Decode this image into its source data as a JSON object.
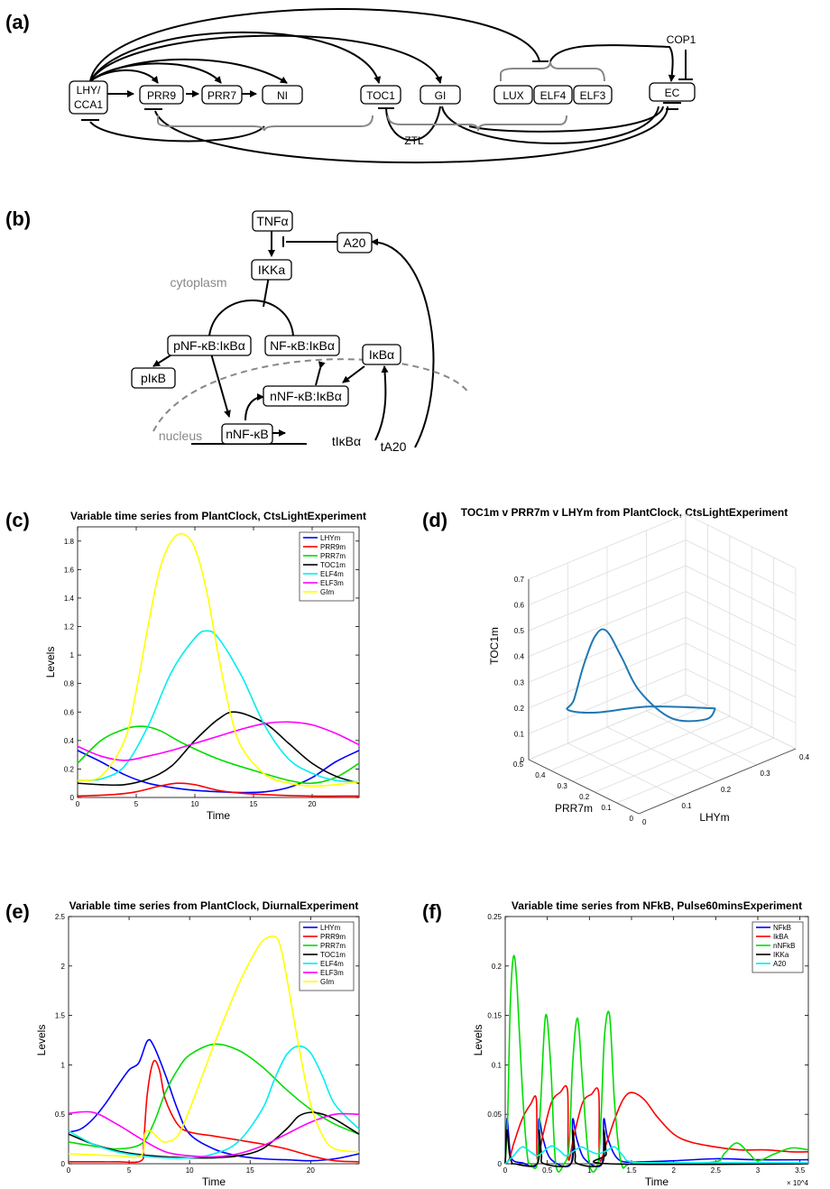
{
  "panels": {
    "a": {
      "label": "(a)",
      "nodes": {
        "lhy1": "LHY/",
        "lhy2": "CCA1",
        "prr9": "PRR9",
        "prr7": "PRR7",
        "ni": "NI",
        "toc1": "TOC1",
        "gi": "GI",
        "lux": "LUX",
        "elf4": "ELF4",
        "elf3": "ELF3",
        "ec": "EC",
        "cop1": "COP1",
        "ztl": "ZTL"
      }
    },
    "b": {
      "label": "(b)",
      "nodes": {
        "tnfa": "TNFα",
        "a20": "A20",
        "ikka": "IKKa",
        "pnfkb": "pNF-κB:IκBα",
        "nfkb": "NF-κB:IκBα",
        "pikb": "pIκB",
        "ikba": "IκBα",
        "nnfkb_ikba": "nNF-κB:IκBα",
        "nnfkb": "nNF-κB",
        "tikba": "tIκBα",
        "ta20": "tA20"
      },
      "compartments": {
        "cytoplasm": "cytoplasm",
        "nucleus": "nucleus"
      }
    },
    "c": {
      "label": "(c)"
    },
    "d": {
      "label": "(d)"
    },
    "e": {
      "label": "(e)"
    },
    "f": {
      "label": "(f)"
    }
  },
  "chart_data": [
    {
      "panel": "c",
      "type": "line",
      "title": "Variable time series from PlantClock, CtsLightExperiment",
      "xlabel": "Time",
      "ylabel": "Levels",
      "xlim": [
        0,
        24
      ],
      "ylim": [
        0,
        1.9
      ],
      "xticks": [
        0,
        5,
        10,
        15,
        20
      ],
      "yticks": [
        0,
        0.2,
        0.4,
        0.6,
        0.8,
        1,
        1.2,
        1.4,
        1.6,
        1.8
      ],
      "legend_position": "top-right",
      "grid": false,
      "series": [
        {
          "name": "LHYm",
          "color": "#0000ff",
          "x": [
            0,
            2,
            4,
            6,
            8,
            10,
            12,
            14,
            16,
            18,
            20,
            22,
            24
          ],
          "y": [
            0.33,
            0.25,
            0.16,
            0.1,
            0.07,
            0.05,
            0.04,
            0.035,
            0.04,
            0.07,
            0.14,
            0.25,
            0.33
          ]
        },
        {
          "name": "PRR9m",
          "color": "#ff0000",
          "x": [
            0,
            3,
            5,
            7,
            8.5,
            10,
            12,
            14,
            16,
            20,
            24
          ],
          "y": [
            0.01,
            0.02,
            0.04,
            0.08,
            0.1,
            0.09,
            0.05,
            0.03,
            0.02,
            0.01,
            0.01
          ]
        },
        {
          "name": "PRR7m",
          "color": "#00dd00",
          "x": [
            0,
            2,
            4,
            5.5,
            7,
            9,
            12,
            15,
            18,
            20,
            22,
            24
          ],
          "y": [
            0.24,
            0.4,
            0.48,
            0.5,
            0.47,
            0.38,
            0.27,
            0.19,
            0.12,
            0.1,
            0.14,
            0.24
          ]
        },
        {
          "name": "TOC1m",
          "color": "#000000",
          "x": [
            0,
            2,
            4,
            6,
            8,
            10,
            12,
            13.5,
            16,
            18,
            20,
            22,
            24
          ],
          "y": [
            0.1,
            0.09,
            0.09,
            0.13,
            0.22,
            0.4,
            0.55,
            0.6,
            0.52,
            0.38,
            0.24,
            0.15,
            0.1
          ]
        },
        {
          "name": "ELF4m",
          "color": "#00eeee",
          "x": [
            0,
            2,
            4,
            6,
            8,
            10,
            11,
            12,
            14,
            16,
            18,
            20,
            22,
            24
          ],
          "y": [
            0.12,
            0.13,
            0.22,
            0.5,
            0.88,
            1.12,
            1.17,
            1.12,
            0.85,
            0.5,
            0.27,
            0.17,
            0.12,
            0.11
          ]
        },
        {
          "name": "ELF3m",
          "color": "#ff00ff",
          "x": [
            0,
            2,
            4,
            6,
            8,
            10,
            12,
            14,
            16,
            18,
            20,
            22,
            24
          ],
          "y": [
            0.36,
            0.29,
            0.26,
            0.29,
            0.33,
            0.38,
            0.43,
            0.48,
            0.52,
            0.53,
            0.51,
            0.45,
            0.37
          ]
        },
        {
          "name": "GIm",
          "color": "#ffff00",
          "x": [
            0,
            2,
            4,
            5,
            6,
            7,
            8,
            9,
            10,
            11,
            12,
            13,
            14,
            16,
            18,
            20,
            22,
            24
          ],
          "y": [
            0.12,
            0.15,
            0.4,
            0.75,
            1.2,
            1.6,
            1.8,
            1.85,
            1.75,
            1.45,
            1.0,
            0.6,
            0.35,
            0.16,
            0.1,
            0.08,
            0.09,
            0.11
          ]
        }
      ]
    },
    {
      "panel": "d",
      "type": "line3d",
      "title": "TOC1m v PRR7m v LHYm from PlantClock, CtsLightExperiment",
      "xlabel": "LHYm",
      "ylabel": "PRR7m",
      "zlabel": "TOC1m",
      "xlim": [
        0,
        0.4
      ],
      "ylim": [
        0,
        0.5
      ],
      "zlim": [
        0,
        0.7
      ],
      "xticks": [
        0,
        0.1,
        0.2,
        0.3,
        0.4
      ],
      "yticks": [
        0,
        0.1,
        0.2,
        0.3,
        0.4,
        0.5
      ],
      "zticks": [
        0,
        0.1,
        0.2,
        0.3,
        0.4,
        0.5,
        0.6,
        0.7
      ],
      "grid": true,
      "series": [
        {
          "name": "",
          "color": "#1f77b4",
          "x": [
            0.33,
            0.25,
            0.16,
            0.1,
            0.07,
            0.05,
            0.04,
            0.035,
            0.04,
            0.07,
            0.14,
            0.25,
            0.33
          ],
          "y": [
            0.24,
            0.4,
            0.48,
            0.5,
            0.42,
            0.34,
            0.27,
            0.21,
            0.15,
            0.12,
            0.1,
            0.14,
            0.24
          ],
          "z": [
            0.1,
            0.09,
            0.09,
            0.13,
            0.22,
            0.4,
            0.55,
            0.6,
            0.52,
            0.38,
            0.24,
            0.15,
            0.1
          ]
        }
      ]
    },
    {
      "panel": "e",
      "type": "line",
      "title": "Variable time series from PlantClock, DiurnalExperiment",
      "xlabel": "Time",
      "ylabel": "Levels",
      "xlim": [
        0,
        24
      ],
      "ylim": [
        0,
        2.5
      ],
      "xticks": [
        0,
        5,
        10,
        15,
        20
      ],
      "yticks": [
        0,
        0.5,
        1,
        1.5,
        2,
        2.5
      ],
      "legend_position": "top-right",
      "grid": false,
      "series": [
        {
          "name": "LHYm",
          "color": "#0000ff",
          "x": [
            0,
            1,
            2,
            3,
            4,
            5,
            5.8,
            6.5,
            7,
            8,
            9,
            10,
            12,
            14,
            16,
            18,
            20,
            22,
            24
          ],
          "y": [
            0.32,
            0.35,
            0.45,
            0.6,
            0.78,
            0.95,
            1.02,
            1.24,
            1.2,
            0.9,
            0.55,
            0.3,
            0.15,
            0.08,
            0.05,
            0.04,
            0.03,
            0.05,
            0.1
          ]
        },
        {
          "name": "PRR9m",
          "color": "#ff0000",
          "x": [
            0,
            2,
            4,
            6,
            6.2,
            6.5,
            7,
            7.5,
            8,
            9,
            10,
            12,
            14,
            16,
            18,
            20,
            22,
            24
          ],
          "y": [
            0.02,
            0.02,
            0.02,
            0.03,
            0.2,
            0.7,
            1.03,
            0.95,
            0.65,
            0.4,
            0.32,
            0.28,
            0.24,
            0.2,
            0.15,
            0.08,
            0.03,
            0.02
          ]
        },
        {
          "name": "PRR7m",
          "color": "#00dd00",
          "x": [
            0,
            2,
            4,
            6,
            7,
            8,
            9,
            10,
            12,
            14,
            16,
            18,
            20,
            22,
            24
          ],
          "y": [
            0.22,
            0.18,
            0.15,
            0.2,
            0.4,
            0.72,
            0.95,
            1.1,
            1.21,
            1.15,
            0.98,
            0.75,
            0.55,
            0.4,
            0.3
          ]
        },
        {
          "name": "TOC1m",
          "color": "#000000",
          "x": [
            0,
            2,
            4,
            6,
            8,
            10,
            12,
            14,
            16,
            18,
            19,
            20,
            21,
            22,
            24
          ],
          "y": [
            0.3,
            0.2,
            0.13,
            0.09,
            0.07,
            0.06,
            0.06,
            0.08,
            0.15,
            0.35,
            0.48,
            0.52,
            0.5,
            0.45,
            0.3
          ]
        },
        {
          "name": "ELF4m",
          "color": "#00eeee",
          "x": [
            0,
            2,
            4,
            6,
            8,
            10,
            12,
            14,
            16,
            17,
            18,
            19,
            20,
            21,
            22,
            24
          ],
          "y": [
            0.33,
            0.2,
            0.12,
            0.08,
            0.06,
            0.06,
            0.1,
            0.22,
            0.55,
            0.85,
            1.1,
            1.19,
            1.12,
            0.88,
            0.6,
            0.35
          ]
        },
        {
          "name": "ELF3m",
          "color": "#ff00ff",
          "x": [
            0,
            2,
            4,
            6,
            8,
            10,
            12,
            14,
            16,
            18,
            20,
            22,
            24
          ],
          "y": [
            0.51,
            0.52,
            0.4,
            0.25,
            0.12,
            0.08,
            0.07,
            0.1,
            0.18,
            0.3,
            0.42,
            0.5,
            0.5
          ]
        },
        {
          "name": "GIm",
          "color": "#ffff00",
          "x": [
            0,
            2,
            4,
            6,
            6.3,
            6.8,
            7.5,
            8,
            9,
            10,
            12,
            14,
            15,
            16,
            17,
            17.5,
            18,
            19,
            20,
            21,
            22,
            24
          ],
          "y": [
            0.1,
            0.09,
            0.08,
            0.08,
            0.3,
            0.33,
            0.25,
            0.22,
            0.28,
            0.55,
            1.2,
            1.8,
            2.05,
            2.25,
            2.3,
            2.2,
            1.9,
            1.2,
            0.6,
            0.28,
            0.15,
            0.12
          ]
        }
      ]
    },
    {
      "panel": "f",
      "type": "line",
      "title": "Variable time series from NFkB, Pulse60minsExperiment",
      "xlabel": "Time",
      "ylabel": "Levels",
      "xscale_label": "× 10^4",
      "xlim": [
        0,
        3.6
      ],
      "ylim": [
        0,
        0.25
      ],
      "xticks": [
        0,
        0.5,
        1,
        1.5,
        2,
        2.5,
        3,
        3.5
      ],
      "yticks": [
        0,
        0.05,
        0.1,
        0.15,
        0.2,
        0.25
      ],
      "legend_position": "top-right",
      "grid": false,
      "series": [
        {
          "name": "NFkB",
          "color": "#0000ff",
          "x": [
            0,
            0.02,
            0.04,
            0.06,
            0.1,
            0.2,
            0.38,
            0.4,
            0.45,
            0.55,
            0.78,
            0.8,
            0.85,
            0.95,
            1.15,
            1.17,
            1.22,
            1.35,
            1.6,
            2.0,
            2.5,
            3.0,
            3.6
          ],
          "y": [
            0.0,
            0.045,
            0.03,
            0.01,
            0.003,
            0.001,
            0.0,
            0.045,
            0.025,
            0.004,
            0.0,
            0.045,
            0.025,
            0.004,
            0.0,
            0.045,
            0.025,
            0.004,
            0.002,
            0.003,
            0.005,
            0.004,
            0.004
          ]
        },
        {
          "name": "IkBA",
          "color": "#ff0000",
          "x": [
            0,
            0.05,
            0.1,
            0.2,
            0.3,
            0.37,
            0.38,
            0.45,
            0.55,
            0.65,
            0.74,
            0.75,
            0.82,
            0.92,
            1.02,
            1.11,
            1.12,
            1.2,
            1.3,
            1.4,
            1.5,
            1.65,
            1.8,
            2.0,
            2.2,
            2.5,
            2.8,
            3.1,
            3.4,
            3.6
          ],
          "y": [
            0.0,
            0.005,
            0.02,
            0.045,
            0.06,
            0.065,
            0.005,
            0.03,
            0.062,
            0.072,
            0.074,
            0.005,
            0.03,
            0.062,
            0.07,
            0.072,
            0.005,
            0.02,
            0.045,
            0.065,
            0.072,
            0.065,
            0.048,
            0.03,
            0.022,
            0.017,
            0.014,
            0.014,
            0.012,
            0.012
          ]
        },
        {
          "name": "nNFkB",
          "color": "#00dd00",
          "x": [
            0,
            0.03,
            0.06,
            0.1,
            0.14,
            0.2,
            0.26,
            0.3,
            0.38,
            0.42,
            0.48,
            0.54,
            0.6,
            0.7,
            0.76,
            0.8,
            0.86,
            0.92,
            1.0,
            1.1,
            1.14,
            1.18,
            1.24,
            1.3,
            1.38,
            1.5,
            2.0,
            2.5,
            2.6,
            2.75,
            2.9,
            3.0,
            3.2,
            3.4,
            3.6
          ],
          "y": [
            0.0,
            0.05,
            0.16,
            0.21,
            0.18,
            0.08,
            0.01,
            0.0,
            0.0,
            0.06,
            0.15,
            0.1,
            0.0,
            0.0,
            0.02,
            0.1,
            0.147,
            0.08,
            0.0,
            0.0,
            0.05,
            0.13,
            0.15,
            0.06,
            0.0,
            0.0,
            0.0,
            0.002,
            0.01,
            0.021,
            0.01,
            0.003,
            0.01,
            0.016,
            0.014
          ]
        },
        {
          "name": "IKKa",
          "color": "#000000",
          "x": [
            0,
            0.02,
            0.05,
            0.08,
            0.1,
            0.38,
            0.4,
            0.43,
            0.46,
            0.78,
            0.8,
            0.83,
            0.86,
            1.15,
            1.17,
            1.2,
            1.23,
            3.6
          ],
          "y": [
            0.0,
            0.034,
            0.01,
            0.001,
            0.0,
            0.0,
            0.034,
            0.01,
            0.0,
            0.0,
            0.034,
            0.01,
            0.0,
            0.0,
            0.034,
            0.01,
            0.0,
            0.0
          ]
        },
        {
          "name": "A20",
          "color": "#00eeee",
          "x": [
            0,
            0.1,
            0.2,
            0.3,
            0.38,
            0.45,
            0.55,
            0.65,
            0.72,
            0.8,
            0.9,
            1.0,
            1.1,
            1.2,
            1.3,
            1.4,
            1.5,
            2.0,
            3.6
          ],
          "y": [
            0.0,
            0.008,
            0.017,
            0.012,
            0.008,
            0.012,
            0.018,
            0.013,
            0.008,
            0.012,
            0.017,
            0.013,
            0.01,
            0.013,
            0.017,
            0.008,
            0.002,
            0.001,
            0.001
          ]
        }
      ]
    }
  ]
}
